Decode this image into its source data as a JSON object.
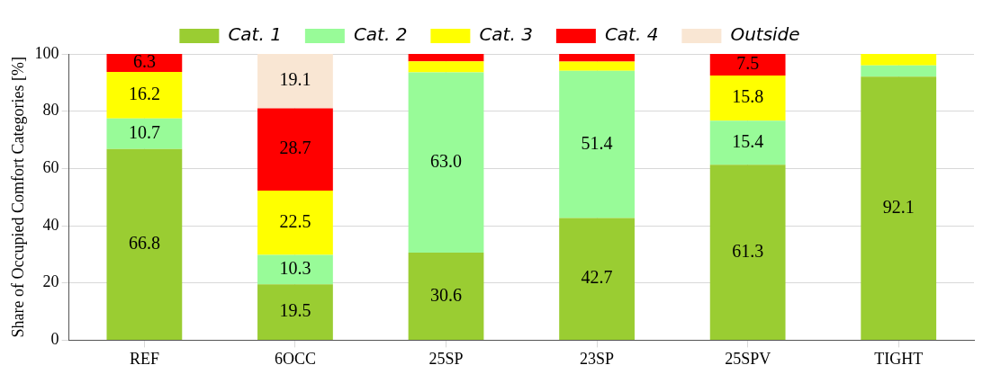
{
  "chart_data": {
    "type": "bar",
    "stacked": true,
    "ylabel": "Share of Occupied Comfort Categories [%]",
    "categories": [
      "REF",
      "6OCC",
      "25SP",
      "23SP",
      "25SPV",
      "TIGHT"
    ],
    "series": [
      {
        "name": "Cat. 1",
        "color": "#9acd32",
        "values": [
          66.8,
          19.5,
          30.6,
          42.7,
          61.3,
          92.1
        ],
        "value_labels": [
          "66.8",
          "19.5",
          "30.6",
          "42.7",
          "61.3",
          "92.1"
        ]
      },
      {
        "name": "Cat. 2",
        "color": "#98fb98",
        "values": [
          10.7,
          10.3,
          63.0,
          51.4,
          15.4,
          3.9
        ],
        "value_labels": [
          "10.7",
          "10.3",
          "63.0",
          "51.4",
          "15.4",
          null
        ]
      },
      {
        "name": "Cat. 3",
        "color": "#ffff00",
        "values": [
          16.2,
          22.5,
          3.8,
          3.2,
          15.8,
          4.0
        ],
        "value_labels": [
          "16.2",
          "22.5",
          null,
          null,
          "15.8",
          null
        ]
      },
      {
        "name": "Cat. 4",
        "color": "#ff0000",
        "values": [
          6.3,
          28.7,
          2.6,
          2.7,
          7.5,
          0
        ],
        "value_labels": [
          "6.3",
          "28.7",
          null,
          null,
          "7.5",
          null
        ]
      },
      {
        "name": "Outside",
        "color": "#f9e6d3",
        "values": [
          0,
          19.1,
          0,
          0,
          0,
          0
        ],
        "value_labels": [
          null,
          "19.1",
          null,
          null,
          null,
          null
        ]
      }
    ],
    "ylim": [
      0,
      100
    ],
    "yticks": [
      0,
      20,
      40,
      60,
      80,
      100
    ],
    "grid": true,
    "legend": "top"
  }
}
